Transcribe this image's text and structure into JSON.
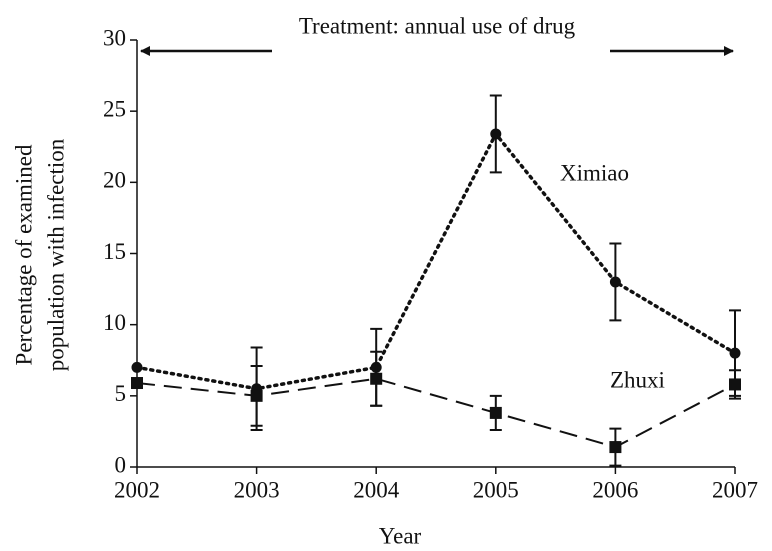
{
  "chart_data": {
    "type": "line",
    "annotation": "Treatment:  annual use of drug",
    "xlabel": "Year",
    "ylabel": [
      "Percentage of examined",
      "population with infection"
    ],
    "x": [
      2002,
      2003,
      2004,
      2005,
      2006,
      2007
    ],
    "xlim": [
      2002,
      2007
    ],
    "xticks": [
      2002,
      2003,
      2004,
      2005,
      2006,
      2007
    ],
    "ylim": [
      0,
      30
    ],
    "yticks": [
      0,
      5,
      10,
      15,
      20,
      25,
      30
    ],
    "series": [
      {
        "name": "Ximiao",
        "color": "#111111",
        "dash": "dotted",
        "marker": "circle",
        "values": [
          7.0,
          5.5,
          7.0,
          23.4,
          13.0,
          8.0
        ],
        "errors": [
          null,
          2.9,
          2.7,
          2.7,
          2.7,
          3.0
        ]
      },
      {
        "name": "Zhuxi",
        "color": "#111111",
        "dash": "dashed",
        "marker": "square",
        "values": [
          5.9,
          5.0,
          6.2,
          3.8,
          1.4,
          5.8
        ],
        "errors": [
          null,
          2.1,
          1.9,
          1.2,
          1.3,
          1.0
        ]
      }
    ]
  }
}
